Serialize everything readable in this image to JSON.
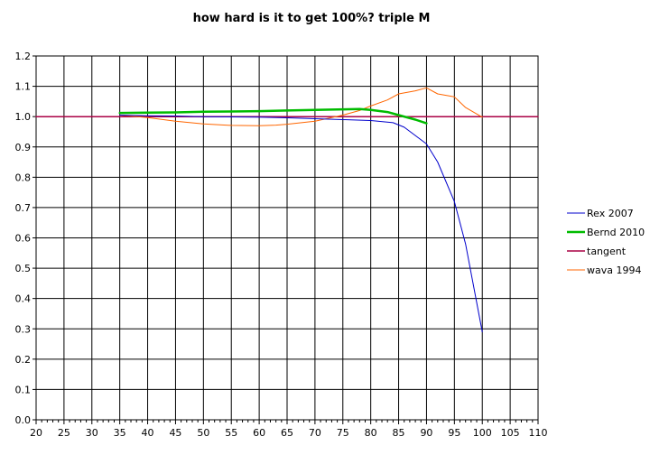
{
  "chart_data": {
    "type": "line",
    "title": "how hard is it to get 100%? triple M",
    "xlabel": "",
    "ylabel": "",
    "xlim": [
      20,
      110
    ],
    "ylim": [
      0.0,
      1.2
    ],
    "x_ticks": [
      20,
      25,
      30,
      35,
      40,
      45,
      50,
      55,
      60,
      65,
      70,
      75,
      80,
      85,
      90,
      95,
      100,
      105,
      110
    ],
    "y_ticks": [
      "0.0",
      "0.1",
      "0.2",
      "0.3",
      "0.4",
      "0.5",
      "0.6",
      "0.7",
      "0.8",
      "0.9",
      "1.0",
      "1.1",
      "1.2"
    ],
    "grid": true,
    "legend_position": "right",
    "series": [
      {
        "name": "Rex 2007",
        "color": "#0000cc",
        "width": 1,
        "points": [
          [
            35,
            1.005
          ],
          [
            40,
            1.003
          ],
          [
            45,
            1.002
          ],
          [
            50,
            1.0
          ],
          [
            55,
            0.999
          ],
          [
            60,
            0.998
          ],
          [
            65,
            0.996
          ],
          [
            70,
            0.993
          ],
          [
            75,
            0.99
          ],
          [
            80,
            0.987
          ],
          [
            84,
            0.98
          ],
          [
            86,
            0.965
          ],
          [
            90,
            0.91
          ],
          [
            92,
            0.85
          ],
          [
            95,
            0.72
          ],
          [
            97,
            0.58
          ],
          [
            100,
            0.29
          ]
        ]
      },
      {
        "name": "Bernd 2010",
        "color": "#00bb00",
        "width": 2.5,
        "points": [
          [
            35,
            1.012
          ],
          [
            40,
            1.013
          ],
          [
            45,
            1.014
          ],
          [
            50,
            1.016
          ],
          [
            55,
            1.017
          ],
          [
            60,
            1.018
          ],
          [
            65,
            1.02
          ],
          [
            70,
            1.022
          ],
          [
            75,
            1.024
          ],
          [
            78,
            1.025
          ],
          [
            80,
            1.022
          ],
          [
            83,
            1.015
          ],
          [
            85,
            1.005
          ],
          [
            88,
            0.99
          ],
          [
            90,
            0.978
          ]
        ]
      },
      {
        "name": "tangent",
        "color": "#aa0044",
        "width": 1.5,
        "points": [
          [
            20,
            1.0
          ],
          [
            110,
            1.0
          ]
        ]
      },
      {
        "name": "wava 1994",
        "color": "#ff6600",
        "width": 1,
        "points": [
          [
            35,
            1.005
          ],
          [
            40,
            0.997
          ],
          [
            45,
            0.985
          ],
          [
            50,
            0.976
          ],
          [
            55,
            0.971
          ],
          [
            60,
            0.97
          ],
          [
            63,
            0.972
          ],
          [
            65,
            0.975
          ],
          [
            70,
            0.985
          ],
          [
            75,
            1.005
          ],
          [
            78,
            1.02
          ],
          [
            80,
            1.035
          ],
          [
            83,
            1.055
          ],
          [
            85,
            1.075
          ],
          [
            88,
            1.085
          ],
          [
            90,
            1.095
          ],
          [
            92,
            1.075
          ],
          [
            95,
            1.065
          ],
          [
            97,
            1.03
          ],
          [
            100,
            0.998
          ]
        ]
      }
    ]
  }
}
